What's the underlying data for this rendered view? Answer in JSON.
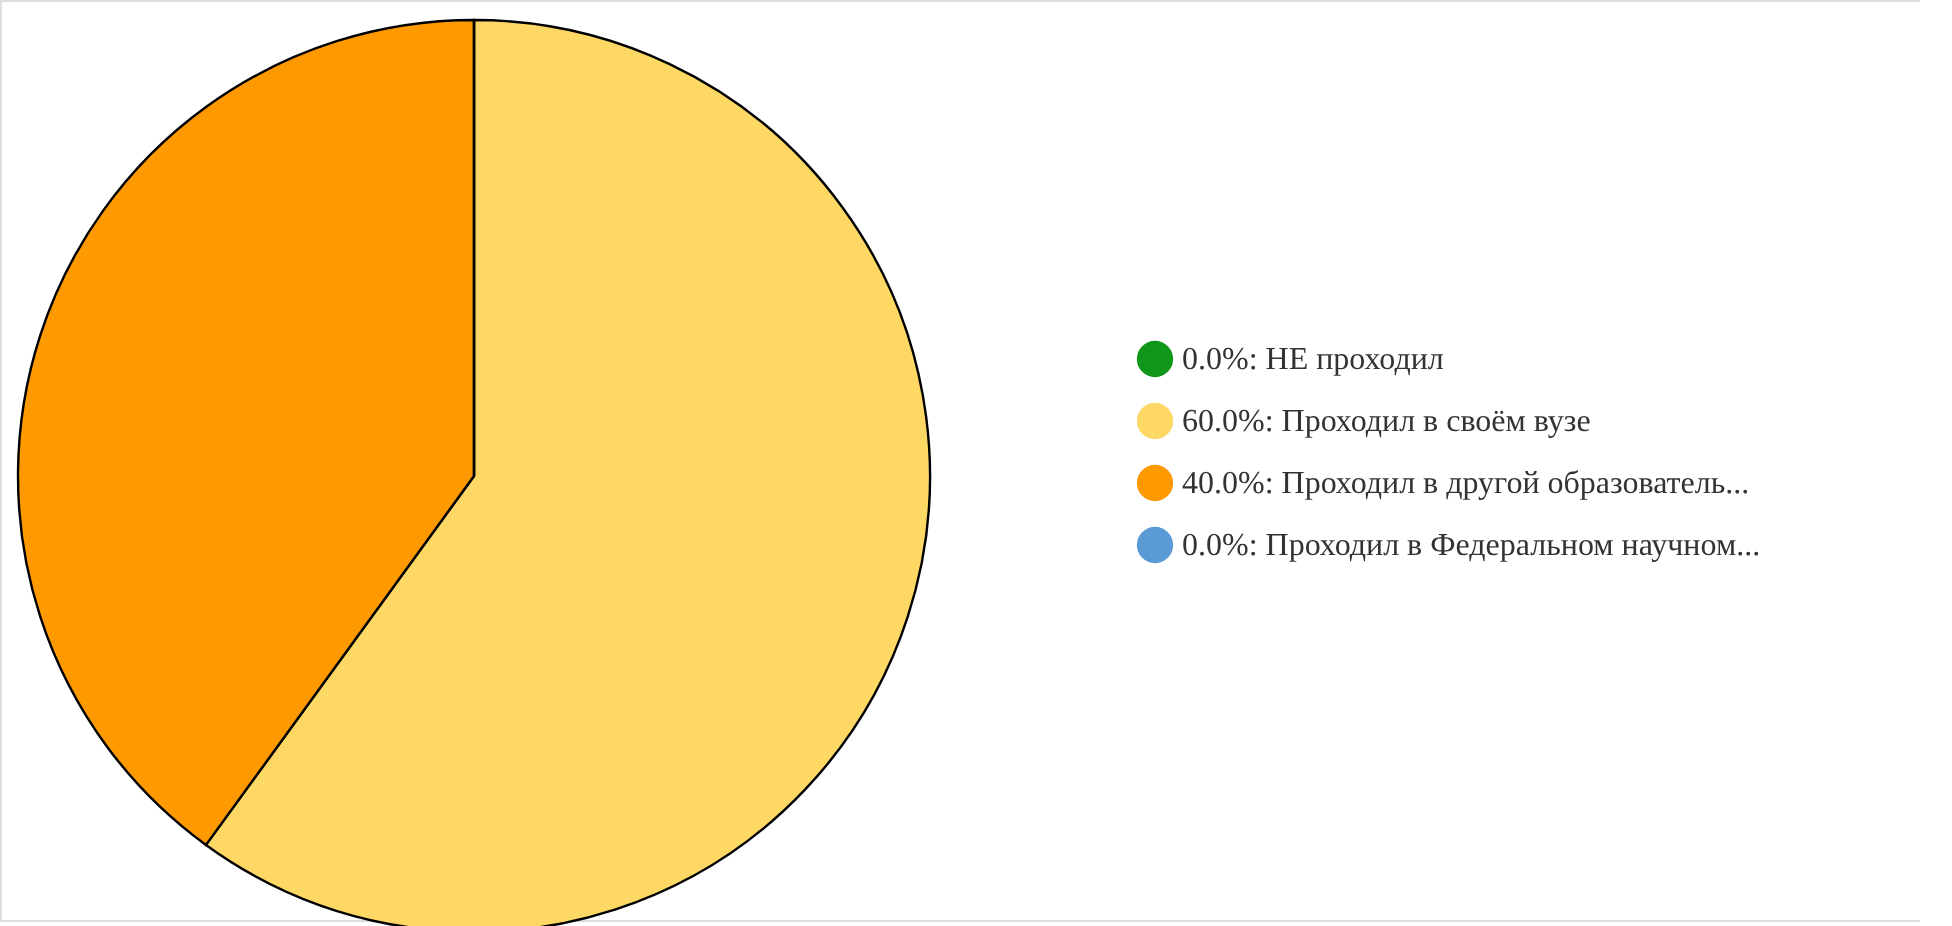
{
  "chart_data": {
    "type": "pie",
    "categories": [
      "0.0%: НЕ проходил",
      "60.0%: Проходил в своём вузе",
      "40.0%: Проходил в другой образователь...",
      "0.0%: Проходил в Федеральном научном..."
    ],
    "values": [
      0,
      60,
      40,
      0
    ],
    "colors": [
      "#109618",
      "#fdd865",
      "#ff9900",
      "#5b9bd5"
    ],
    "legend": "right"
  }
}
